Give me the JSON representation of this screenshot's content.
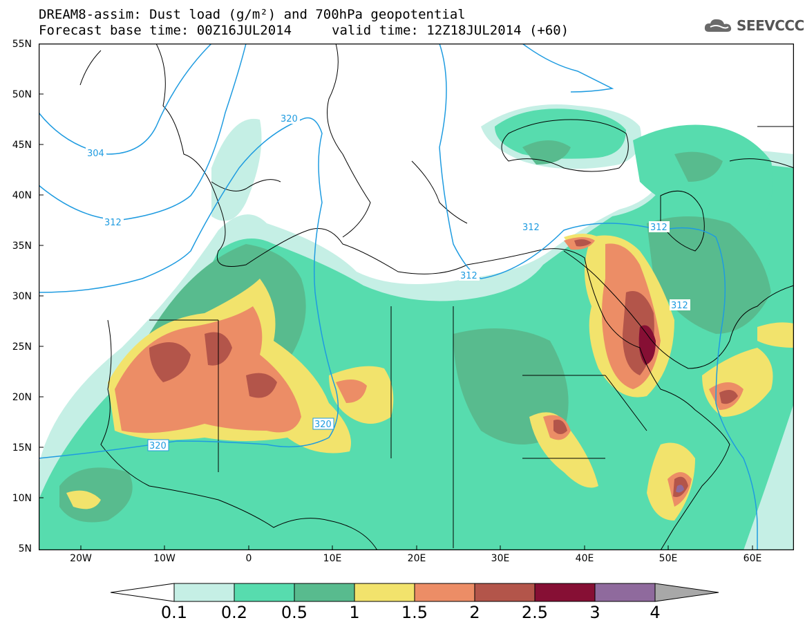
{
  "title": {
    "line1": "DREAM8-assim: Dust load (g/m²) and 700hPa geopotential",
    "line2_left": "Forecast base time: 00Z16JUL2014",
    "line2_right": "valid time: 12Z18JUL2014 (+60)"
  },
  "logo": {
    "text": "SEEVCCC",
    "icon": "cloud-icon"
  },
  "axes": {
    "lat_labels": [
      "55N",
      "50N",
      "45N",
      "40N",
      "35N",
      "30N",
      "25N",
      "20N",
      "15N",
      "10N",
      "5N"
    ],
    "lon_labels": [
      "20W",
      "10W",
      "0",
      "10E",
      "20E",
      "30E",
      "40E",
      "50E",
      "60E"
    ],
    "lon_range": [
      -25,
      65
    ],
    "lat_range": [
      5,
      55
    ]
  },
  "contours": {
    "geopotential_labels": [
      "304",
      "312",
      "320",
      "320",
      "312",
      "312",
      "312",
      "312",
      "320"
    ]
  },
  "colorbar": {
    "levels": [
      "0.1",
      "0.2",
      "0.5",
      "1",
      "1.5",
      "2",
      "2.5",
      "3",
      "4"
    ],
    "colors": [
      "#c5efe5",
      "#57dcae",
      "#58bb8e",
      "#f2e36c",
      "#ec8d66",
      "#b3554a",
      "#860f34",
      "#8f6a9d",
      "#a8a8a8"
    ]
  }
}
